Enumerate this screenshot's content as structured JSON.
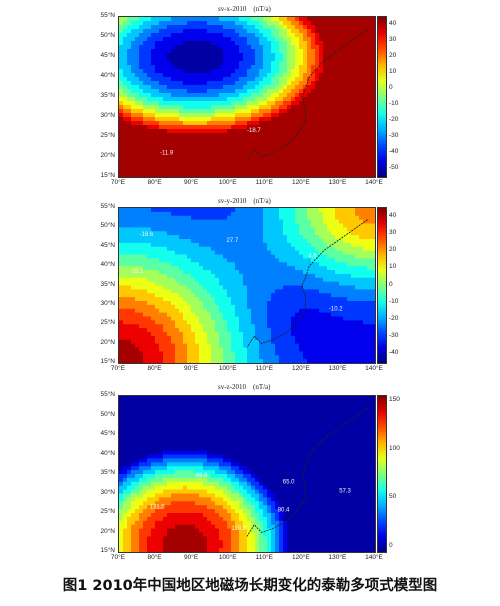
{
  "caption": "图1 2010年中国地区地磁场长期变化的泰勒多项式模型图",
  "chart_data": [
    {
      "type": "heatmap",
      "title": "sv-x-2010",
      "unit": "(nT/a)",
      "x_ticks": [
        "70°E",
        "80°E",
        "90°E",
        "100°E",
        "110°E",
        "120°E",
        "130°E",
        "140°E"
      ],
      "y_ticks": [
        "55°N",
        "50°N",
        "45°N",
        "40°N",
        "35°N",
        "30°N",
        "25°N",
        "20°N",
        "15°N"
      ],
      "xlim": [
        70,
        140
      ],
      "ylim": [
        15,
        55
      ],
      "colorbar_ticks": [
        "40",
        "30",
        "20",
        "10",
        "0",
        "-10",
        "-20",
        "-30",
        "-40",
        "-50"
      ],
      "colorbar_range": [
        -55,
        45
      ],
      "contour_labels": [
        "-11.9",
        "-18.7"
      ]
    },
    {
      "type": "heatmap",
      "title": "sv-y-2010",
      "unit": "(nT/a)",
      "x_ticks": [
        "70°E",
        "80°E",
        "90°E",
        "100°E",
        "110°E",
        "120°E",
        "130°E",
        "140°E"
      ],
      "y_ticks": [
        "55°N",
        "50°N",
        "45°N",
        "40°N",
        "35°N",
        "30°N",
        "25°N",
        "20°N",
        "15°N"
      ],
      "xlim": [
        70,
        140
      ],
      "ylim": [
        15,
        55
      ],
      "colorbar_ticks": [
        "40",
        "30",
        "20",
        "10",
        "0",
        "-10",
        "-20",
        "-30",
        "-40"
      ],
      "colorbar_range": [
        -45,
        45
      ],
      "contour_labels": [
        "-18.6",
        "25.1",
        "27.7",
        "4.6",
        "-10.2"
      ]
    },
    {
      "type": "heatmap",
      "title": "sv-z-2010",
      "unit": "(nT/a)",
      "x_ticks": [
        "70°E",
        "80°E",
        "90°E",
        "100°E",
        "110°E",
        "120°E",
        "130°E",
        "140°E"
      ],
      "y_ticks": [
        "55°N",
        "50°N",
        "45°N",
        "40°N",
        "35°N",
        "30°N",
        "25°N",
        "20°N",
        "15°N"
      ],
      "xlim": [
        70,
        140
      ],
      "ylim": [
        15,
        55
      ],
      "colorbar_ticks": [
        "150",
        "100",
        "50",
        "0"
      ],
      "colorbar_range": [
        -5,
        155
      ],
      "contour_labels": [
        "89.9",
        "65.0",
        "118.8",
        "131.5",
        "80.4",
        "57.3"
      ]
    }
  ]
}
